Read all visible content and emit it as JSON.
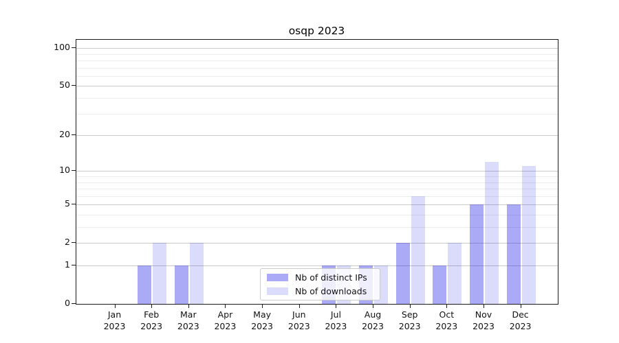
{
  "chart_data": {
    "type": "bar",
    "title": "osqp 2023",
    "categories": [
      "Jan 2023",
      "Feb 2023",
      "Mar 2023",
      "Apr 2023",
      "May 2023",
      "Jun 2023",
      "Jul 2023",
      "Aug 2023",
      "Sep 2023",
      "Oct 2023",
      "Nov 2023",
      "Dec 2023"
    ],
    "series": [
      {
        "name": "Nb of distinct IPs",
        "color": "#a9a9f5",
        "values": [
          0,
          1,
          1,
          0,
          0,
          0,
          1,
          1,
          2,
          1,
          5,
          5
        ]
      },
      {
        "name": "Nb of downloads",
        "color": "#dbdbf8",
        "values": [
          0,
          2,
          2,
          0,
          0,
          0,
          1,
          1,
          6,
          2,
          12,
          11
        ]
      }
    ],
    "xlabel": "",
    "ylabel": "",
    "yscale": "log10(1+v)",
    "ylim": [
      0,
      116
    ],
    "yticks": [
      0,
      1,
      2,
      5,
      10,
      20,
      50,
      100
    ],
    "minor_yticks": [
      3,
      4,
      6,
      7,
      8,
      9,
      30,
      40,
      60,
      70,
      80,
      90
    ],
    "grid": true,
    "legend_position": "lower center"
  },
  "colors": {
    "bar_distinct_ips": "#a9a9f5",
    "bar_downloads": "#dbdbf8",
    "grid_major": "#c9c9c9",
    "grid_minor": "#ececec",
    "frame": "#1a1a1a"
  }
}
